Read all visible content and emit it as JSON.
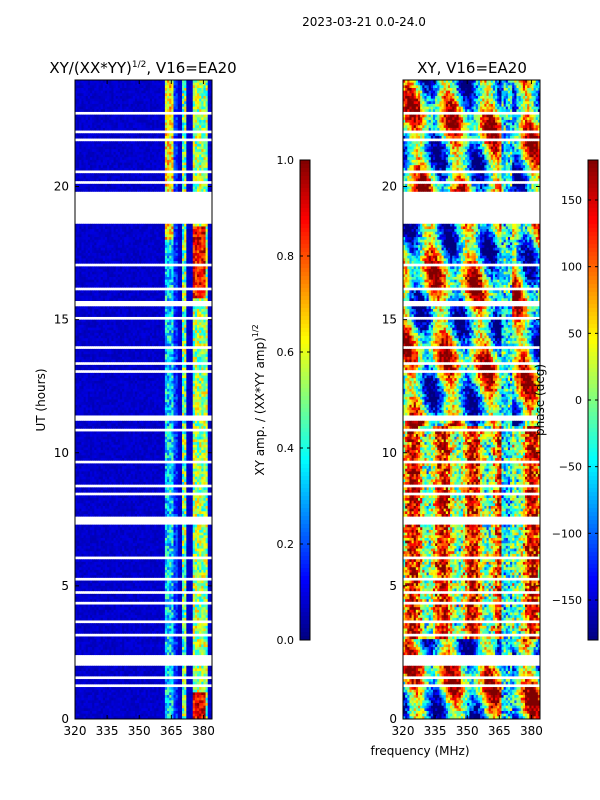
{
  "suptitle": "2023-03-21 0.0-24.0",
  "xlabel_shared": "frequency (MHz)",
  "colors": {
    "jet": [
      "#00007f",
      "#0000ff",
      "#0080ff",
      "#00ffff",
      "#80ff80",
      "#ffff00",
      "#ff8000",
      "#ff0000",
      "#7f0000"
    ],
    "gap": "#ffffff"
  },
  "chart_data": [
    {
      "type": "heatmap",
      "title": "XY/(XX*YY)^{1/2}, V16=EA20",
      "title_main": "XY/(XX*YY)",
      "title_sup": "1/2",
      "title_tail": ", V16=EA20",
      "xlabel": "",
      "ylabel": "UT (hours)",
      "xlim": [
        320,
        384
      ],
      "ylim": [
        0,
        24
      ],
      "xticks": [
        320,
        335,
        350,
        365,
        380
      ],
      "xtick_labels": [
        "320",
        "335",
        "350",
        "365",
        "380"
      ],
      "yticks": [
        0,
        5,
        10,
        15,
        20
      ],
      "ytick_labels": [
        "0",
        "5",
        "10",
        "15",
        "20"
      ],
      "colorbar": {
        "label": "XY amp. / (XX*YY amp)^{1/2}",
        "label_main": "XY amp. / (XX*YY amp)",
        "label_sup": "1/2",
        "range": [
          0.0,
          1.0
        ],
        "ticks": [
          0.0,
          0.2,
          0.4,
          0.6,
          0.8,
          1.0
        ],
        "tick_labels": [
          "0.0",
          "0.2",
          "0.4",
          "0.6",
          "0.8",
          "1.0"
        ]
      }
    },
    {
      "type": "heatmap",
      "title": "XY, V16=EA20",
      "xlabel": "frequency (MHz)",
      "ylabel": "",
      "xlim": [
        320,
        384
      ],
      "ylim": [
        0,
        24
      ],
      "xticks": [
        320,
        335,
        350,
        365,
        380
      ],
      "xtick_labels": [
        "320",
        "335",
        "350",
        "365",
        "380"
      ],
      "yticks": [
        0,
        5,
        10,
        15,
        20
      ],
      "ytick_labels": [
        "0",
        "5",
        "10",
        "15",
        "20"
      ],
      "colorbar": {
        "label": "phase (deg)",
        "range": [
          -180,
          180
        ],
        "ticks": [
          -150,
          -100,
          -50,
          0,
          50,
          100,
          150
        ],
        "tick_labels": [
          "−150",
          "−100",
          "−50",
          "0",
          "50",
          "100",
          "150"
        ]
      }
    }
  ],
  "flagged_ut_ranges_hours": [
    [
      18.6,
      19.8
    ],
    [
      20.1,
      20.15
    ],
    [
      20.55,
      20.6
    ],
    [
      21.75,
      21.8
    ],
    [
      22.05,
      22.1
    ],
    [
      22.75,
      22.8
    ],
    [
      17.05,
      17.1
    ],
    [
      16.15,
      16.2
    ],
    [
      15.55,
      15.65
    ],
    [
      15.05,
      15.1
    ],
    [
      13.95,
      14.0
    ],
    [
      13.35,
      13.4
    ],
    [
      13.0,
      13.05
    ],
    [
      11.2,
      11.4
    ],
    [
      10.85,
      10.9
    ],
    [
      9.6,
      9.65
    ],
    [
      8.75,
      8.8
    ],
    [
      8.4,
      8.45
    ],
    [
      7.3,
      7.6
    ],
    [
      6.05,
      6.1
    ],
    [
      5.2,
      5.25
    ],
    [
      4.75,
      4.8
    ],
    [
      4.35,
      4.4
    ],
    [
      3.6,
      3.65
    ],
    [
      3.1,
      3.15
    ],
    [
      2.0,
      2.4
    ],
    [
      1.55,
      1.6
    ],
    [
      1.2,
      1.25
    ]
  ]
}
